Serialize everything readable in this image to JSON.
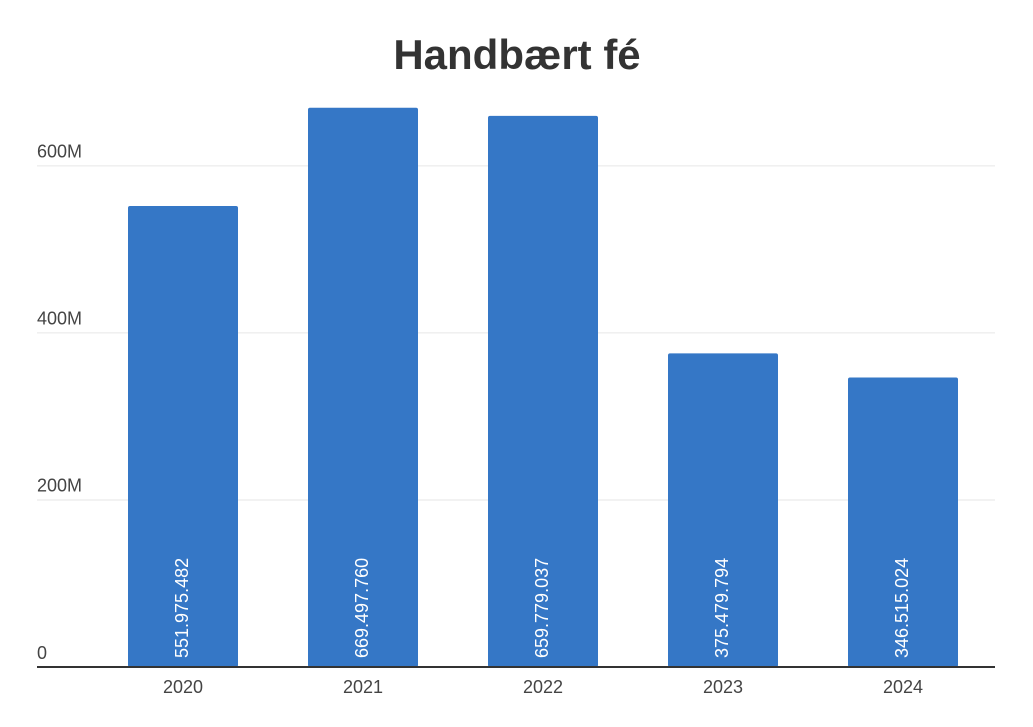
{
  "chart_data": {
    "type": "bar",
    "title": "Handbært fé",
    "categories": [
      "2020",
      "2021",
      "2022",
      "2023",
      "2024"
    ],
    "values": [
      551975482,
      669497760,
      659779037,
      375479794,
      346515024
    ],
    "value_labels": [
      "551.975.482",
      "669.497.760",
      "659.779.037",
      "375.479.794",
      "346.515.024"
    ],
    "color": "#3577c6",
    "ylim": [
      0,
      680000000
    ],
    "yticks": [
      0,
      {
        "value": 200000000,
        "label": "200M"
      },
      {
        "value": 400000000,
        "label": "400M"
      },
      {
        "value": 600000000,
        "label": "600M"
      }
    ],
    "grid": true
  }
}
